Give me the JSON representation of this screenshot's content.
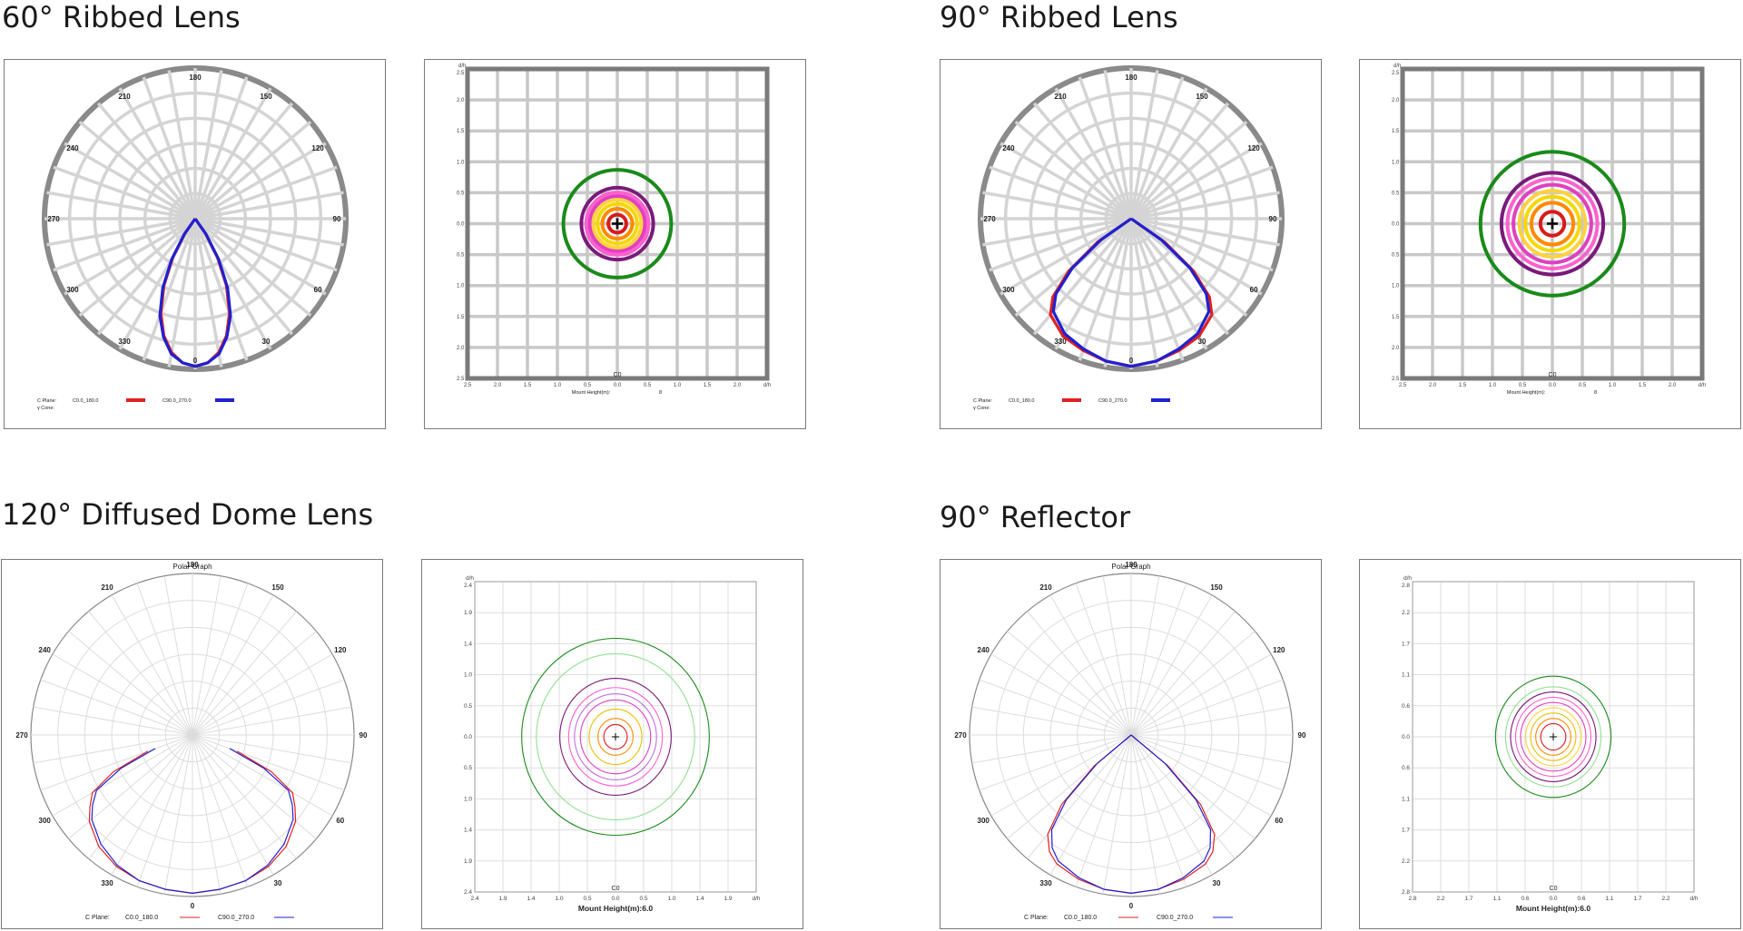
{
  "sections": [
    {
      "title": "60° Ribbed Lens",
      "style": "bold",
      "polar": {
        "graph_title": "",
        "angle_labels": [
          "180",
          "150",
          "120",
          "90",
          "60",
          "30",
          "0",
          "330",
          "300",
          "270",
          "240",
          "210"
        ],
        "legend": {
          "plane_label": "C Plane:",
          "gamma_label": "γ Cone:",
          "c0": "C0.0_180.0",
          "c90": "C90.0_270.0"
        },
        "colors": {
          "c0": "#e02020",
          "c90": "#2020d0"
        }
      },
      "iso": {
        "dh_label": "d/h",
        "y_ticks": [
          "2.5",
          "2.0",
          "1.5",
          "1.0",
          "0.5",
          "0.0",
          "0.5",
          "1.0",
          "1.5",
          "2.0",
          "2.5"
        ],
        "x_ticks": [
          "2.5",
          "2.0",
          "1.5",
          "1.0",
          "0.5",
          "0.0",
          "0.5",
          "1.0",
          "1.5",
          "2.0",
          "d/h"
        ],
        "c_label": "C0",
        "mount_label": "Mount Height(m):",
        "mount_value": "8",
        "range": 2.5,
        "rings": [
          0.15,
          0.25,
          0.33,
          0.4,
          0.46,
          0.52,
          0.6,
          0.9
        ],
        "ring_colors": [
          "#d81b1b",
          "#ff8a00",
          "#f5d800",
          "#ffd23f",
          "#e040c0",
          "#ff60d0",
          "#7a1a7a",
          "#1a8a1a"
        ]
      }
    },
    {
      "title": "90° Ribbed Lens",
      "style": "bold",
      "polar": {
        "graph_title": "",
        "angle_labels": [
          "180",
          "150",
          "120",
          "90",
          "60",
          "30",
          "0",
          "330",
          "300",
          "270",
          "240",
          "210"
        ],
        "legend": {
          "plane_label": "C Plane:",
          "gamma_label": "γ Cone:",
          "c0": "C0.0_180.0",
          "c90": "C90.0_270.0"
        },
        "colors": {
          "c0": "#e02020",
          "c90": "#2020d0"
        }
      },
      "iso": {
        "dh_label": "d/h",
        "y_ticks": [
          "2.5",
          "2.0",
          "1.5",
          "1.0",
          "0.5",
          "0.0",
          "0.5",
          "1.0",
          "1.5",
          "2.0",
          "2.5"
        ],
        "x_ticks": [
          "2.5",
          "2.0",
          "1.5",
          "1.0",
          "0.5",
          "0.0",
          "0.5",
          "1.0",
          "1.5",
          "2.0",
          "d/h"
        ],
        "c_label": "C0",
        "mount_label": "Mount Height(m):",
        "mount_value": "8",
        "range": 2.5,
        "rings": [
          0.2,
          0.35,
          0.45,
          0.55,
          0.65,
          0.75,
          0.85,
          1.2
        ],
        "ring_colors": [
          "#d81b1b",
          "#ff8a00",
          "#f5d800",
          "#ffd23f",
          "#e040c0",
          "#ff60d0",
          "#7a1a7a",
          "#1a8a1a"
        ]
      }
    },
    {
      "title": "120° Diffused Dome Lens",
      "style": "thin",
      "polar": {
        "graph_title": "Polar Graph",
        "angle_labels": [
          "180",
          "150",
          "120",
          "90",
          "60",
          "30",
          "0",
          "330",
          "300",
          "270",
          "240",
          "210"
        ],
        "legend": {
          "plane_label": "C Plane:",
          "gamma_label": "",
          "c0": "C0.0_180.0",
          "c90": "C90.0_270.0"
        },
        "colors": {
          "c0": "#e02020",
          "c90": "#2020d0"
        }
      },
      "iso": {
        "dh_label": "d/h",
        "y_ticks": [
          "2.4",
          "1.9",
          "1.4",
          "1.0",
          "0.5",
          "0.0",
          "0.5",
          "1.0",
          "1.4",
          "1.9",
          "2.4"
        ],
        "x_ticks": [
          "2.4",
          "1.9",
          "1.4",
          "1.0",
          "0.5",
          "0.0",
          "0.5",
          "1.0",
          "1.4",
          "1.9",
          "d/h"
        ],
        "c_label": "C0",
        "mount_label": "Mount Height(m):6.0",
        "mount_value": "",
        "range": 2.4,
        "rings": [
          0.2,
          0.3,
          0.45,
          0.6,
          0.7,
          0.8,
          0.95,
          1.35,
          1.6
        ],
        "ring_colors": [
          "#d81b1b",
          "#ff8a00",
          "#e8c000",
          "#e040c0",
          "#c070e0",
          "#ff60d0",
          "#7a1a7a",
          "#90e090",
          "#1a8a1a"
        ]
      }
    },
    {
      "title": "90° Reflector",
      "style": "thin",
      "polar": {
        "graph_title": "Polar Graph",
        "angle_labels": [
          "180",
          "150",
          "120",
          "90",
          "60",
          "30",
          "0",
          "330",
          "300",
          "270",
          "240",
          "210"
        ],
        "legend": {
          "plane_label": "C Plane:",
          "gamma_label": "",
          "c0": "C0.0_180.0",
          "c90": "C90.0_270.0"
        },
        "colors": {
          "c0": "#e02020",
          "c90": "#2020d0"
        }
      },
      "iso": {
        "dh_label": "d/h",
        "y_ticks": [
          "2.8",
          "2.2",
          "1.7",
          "1.1",
          "0.6",
          "0.0",
          "0.6",
          "1.1",
          "1.7",
          "2.2",
          "2.8"
        ],
        "x_ticks": [
          "2.8",
          "2.2",
          "1.7",
          "1.1",
          "0.6",
          "0.0",
          "0.6",
          "1.1",
          "1.7",
          "2.2",
          "d/h"
        ],
        "c_label": "C0",
        "mount_label": "Mount Height(m):6.0",
        "mount_value": "",
        "range": 2.8,
        "rings": [
          0.25,
          0.35,
          0.45,
          0.55,
          0.65,
          0.75,
          0.85,
          0.95,
          1.15
        ],
        "ring_colors": [
          "#d81b1b",
          "#ff8a00",
          "#e8c000",
          "#ffd23f",
          "#e040c0",
          "#ff60d0",
          "#7a1a7a",
          "#90e090",
          "#1a8a1a"
        ]
      }
    }
  ],
  "chart_data": [
    {
      "type": "polar",
      "title": "60° Ribbed Lens",
      "angles_deg": [
        0,
        5,
        10,
        15,
        20,
        25,
        30,
        35,
        40
      ],
      "series": [
        {
          "name": "C0.0_180.0",
          "values": [
            1.0,
            0.98,
            0.92,
            0.82,
            0.68,
            0.5,
            0.3,
            0.12,
            0.0
          ]
        },
        {
          "name": "C90.0_270.0",
          "values": [
            1.0,
            0.98,
            0.93,
            0.83,
            0.7,
            0.52,
            0.32,
            0.13,
            0.0
          ]
        }
      ]
    },
    {
      "type": "polar",
      "title": "90° Ribbed Lens",
      "angles_deg": [
        0,
        10,
        20,
        30,
        40,
        45,
        50,
        55,
        60
      ],
      "series": [
        {
          "name": "C0.0_180.0",
          "values": [
            1.0,
            0.98,
            0.95,
            0.92,
            0.85,
            0.75,
            0.55,
            0.28,
            0.0
          ]
        },
        {
          "name": "C90.0_270.0",
          "values": [
            1.0,
            0.98,
            0.94,
            0.9,
            0.82,
            0.72,
            0.52,
            0.25,
            0.0
          ]
        }
      ]
    },
    {
      "type": "polar",
      "title": "120° Diffused Dome Lens",
      "angles_deg": [
        0,
        10,
        20,
        30,
        40,
        50,
        55,
        60,
        65,
        70
      ],
      "series": [
        {
          "name": "C0.0_180.0",
          "values": [
            1.0,
            0.99,
            0.98,
            0.96,
            0.92,
            0.85,
            0.79,
            0.73,
            0.55,
            0.3
          ]
        },
        {
          "name": "C90.0_270.0",
          "values": [
            1.0,
            0.99,
            0.98,
            0.95,
            0.9,
            0.83,
            0.77,
            0.7,
            0.5,
            0.25
          ]
        }
      ]
    },
    {
      "type": "polar",
      "title": "90° Reflector",
      "angles_deg": [
        0,
        10,
        20,
        30,
        35,
        40,
        45,
        50,
        55
      ],
      "series": [
        {
          "name": "C0.0_180.0",
          "values": [
            1.0,
            0.99,
            0.97,
            0.94,
            0.9,
            0.82,
            0.62,
            0.3,
            0.0
          ]
        },
        {
          "name": "C90.0_270.0",
          "values": [
            1.0,
            0.99,
            0.96,
            0.92,
            0.87,
            0.78,
            0.58,
            0.28,
            0.0
          ]
        }
      ]
    }
  ]
}
